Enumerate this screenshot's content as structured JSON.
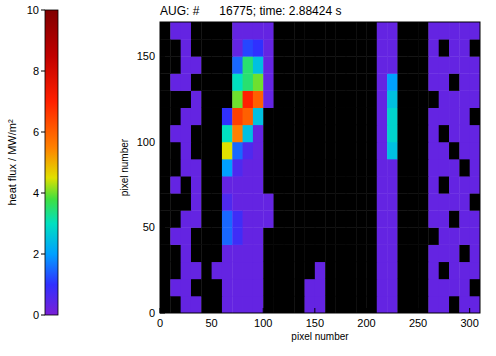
{
  "chart_data": {
    "type": "heatmap",
    "title": "AUG: #      16775; time: 2.88424 s",
    "x_label": "pixel number",
    "y_label": "pixel number",
    "xlim": [
      0,
      310
    ],
    "ylim": [
      0,
      170
    ],
    "xticks": [
      0,
      50,
      100,
      150,
      200,
      250,
      300
    ],
    "yticks": [
      0,
      50,
      100,
      150
    ],
    "x": [
      5,
      15,
      25,
      35,
      45,
      55,
      65,
      75,
      85,
      95,
      105,
      115,
      125,
      135,
      145,
      155,
      165,
      175,
      185,
      195,
      205,
      215,
      225,
      235,
      245,
      255,
      265,
      275,
      285,
      295,
      305
    ],
    "y": [
      5,
      15,
      25,
      35,
      45,
      55,
      65,
      75,
      85,
      95,
      105,
      115,
      125,
      135,
      145,
      155,
      165
    ],
    "values": [
      [
        null,
        null,
        0.3,
        0.3,
        null,
        null,
        0.3,
        0.3,
        0.3,
        0.3,
        null,
        null,
        null,
        null,
        0.3,
        0.3,
        null,
        null,
        null,
        null,
        null,
        0.3,
        0.3,
        null,
        null,
        null,
        0.3,
        0.3,
        null,
        0.3,
        0.3
      ],
      [
        null,
        0.3,
        0.3,
        null,
        null,
        null,
        0.3,
        0.3,
        0.3,
        0.3,
        null,
        null,
        null,
        null,
        0.3,
        0.3,
        null,
        null,
        null,
        null,
        null,
        0.3,
        0.3,
        null,
        null,
        null,
        0.3,
        0.3,
        0.3,
        0.3,
        null
      ],
      [
        null,
        null,
        0.3,
        0.3,
        null,
        0.3,
        0.3,
        0.3,
        0.3,
        0.3,
        null,
        null,
        null,
        null,
        null,
        0.3,
        null,
        null,
        null,
        null,
        null,
        0.3,
        0.3,
        null,
        null,
        null,
        0.3,
        null,
        0.3,
        0.3,
        0.3
      ],
      [
        null,
        null,
        0.3,
        null,
        null,
        null,
        0.3,
        0.3,
        0.3,
        0.3,
        null,
        null,
        null,
        null,
        null,
        null,
        null,
        null,
        null,
        null,
        null,
        0.3,
        0.3,
        null,
        null,
        null,
        0.3,
        0.3,
        0.3,
        null,
        0.3
      ],
      [
        null,
        0.3,
        0.3,
        null,
        null,
        null,
        1.5,
        0.8,
        0.3,
        0.3,
        null,
        null,
        null,
        null,
        null,
        null,
        null,
        null,
        null,
        null,
        null,
        0.3,
        0.3,
        null,
        null,
        null,
        null,
        0.3,
        0.3,
        0.3,
        0.3
      ],
      [
        null,
        null,
        0.3,
        0.3,
        null,
        null,
        1.5,
        0.8,
        0.3,
        0.3,
        0.3,
        null,
        null,
        null,
        null,
        null,
        null,
        null,
        null,
        null,
        null,
        0.3,
        0.3,
        null,
        null,
        null,
        0.3,
        0.3,
        null,
        0.3,
        0.3
      ],
      [
        null,
        null,
        null,
        0.3,
        null,
        null,
        0.6,
        0.3,
        0.3,
        0.3,
        0.3,
        null,
        null,
        null,
        null,
        null,
        null,
        null,
        null,
        null,
        null,
        0.3,
        0.3,
        null,
        null,
        null,
        0.3,
        0.3,
        0.3,
        0.3,
        null
      ],
      [
        null,
        0.3,
        null,
        0.3,
        null,
        null,
        0.3,
        0.3,
        0.3,
        0.3,
        null,
        null,
        null,
        null,
        null,
        null,
        null,
        null,
        null,
        null,
        null,
        0.3,
        0.3,
        null,
        null,
        null,
        0.3,
        null,
        0.3,
        0.3,
        0.3
      ],
      [
        null,
        null,
        0.3,
        0.3,
        null,
        null,
        2.0,
        0.6,
        0.3,
        0.3,
        null,
        null,
        null,
        null,
        null,
        null,
        null,
        null,
        null,
        null,
        null,
        0.3,
        0.3,
        null,
        null,
        null,
        0.3,
        0.3,
        0.3,
        null,
        0.3
      ],
      [
        null,
        null,
        0.3,
        null,
        null,
        null,
        4.5,
        1.5,
        0.6,
        0.3,
        null,
        null,
        null,
        null,
        null,
        null,
        null,
        null,
        null,
        null,
        null,
        0.3,
        2.5,
        null,
        null,
        null,
        0.3,
        0.3,
        null,
        0.3,
        0.3
      ],
      [
        null,
        0.3,
        0.3,
        null,
        null,
        null,
        3.0,
        5.5,
        2.5,
        0.3,
        null,
        null,
        null,
        null,
        null,
        null,
        null,
        null,
        null,
        null,
        null,
        0.3,
        2.8,
        null,
        null,
        null,
        0.3,
        null,
        0.3,
        0.3,
        0.3
      ],
      [
        null,
        null,
        0.3,
        0.3,
        null,
        null,
        1.0,
        6.5,
        6.0,
        2.5,
        null,
        null,
        null,
        null,
        null,
        null,
        null,
        null,
        null,
        null,
        null,
        0.3,
        2.8,
        null,
        null,
        null,
        0.3,
        0.3,
        0.3,
        0.3,
        null
      ],
      [
        null,
        null,
        null,
        0.3,
        null,
        null,
        null,
        4.0,
        7.0,
        6.0,
        0.3,
        null,
        null,
        null,
        null,
        null,
        null,
        null,
        null,
        null,
        null,
        0.3,
        2.5,
        null,
        null,
        null,
        null,
        0.3,
        0.3,
        0.3,
        0.3
      ],
      [
        null,
        0.3,
        0.3,
        null,
        null,
        null,
        null,
        3.0,
        3.5,
        4.0,
        0.3,
        null,
        null,
        null,
        null,
        null,
        null,
        null,
        null,
        null,
        null,
        0.3,
        2.0,
        null,
        null,
        null,
        0.3,
        0.3,
        null,
        0.3,
        0.3
      ],
      [
        null,
        null,
        0.3,
        0.3,
        null,
        null,
        null,
        1.5,
        3.5,
        2.5,
        0.3,
        null,
        null,
        null,
        null,
        null,
        null,
        null,
        null,
        null,
        null,
        0.3,
        0.3,
        null,
        null,
        null,
        0.3,
        0.3,
        0.3,
        0.3,
        0.3
      ],
      [
        null,
        null,
        0.3,
        null,
        null,
        null,
        null,
        0.3,
        1.2,
        1.0,
        0.3,
        null,
        null,
        null,
        null,
        null,
        null,
        null,
        null,
        null,
        null,
        0.3,
        0.3,
        null,
        null,
        null,
        0.3,
        null,
        0.3,
        0.3,
        null
      ],
      [
        null,
        0.3,
        0.3,
        null,
        null,
        null,
        null,
        0.3,
        0.3,
        0.3,
        0.3,
        null,
        null,
        null,
        null,
        null,
        null,
        null,
        null,
        null,
        null,
        0.3,
        0.3,
        null,
        null,
        null,
        0.3,
        0.3,
        0.3,
        0.3,
        0.3
      ]
    ],
    "colorbar": {
      "label": "heat flux / MW/m²",
      "range": [
        0,
        10
      ],
      "ticks": [
        0,
        2,
        4,
        6,
        8,
        10
      ]
    }
  }
}
